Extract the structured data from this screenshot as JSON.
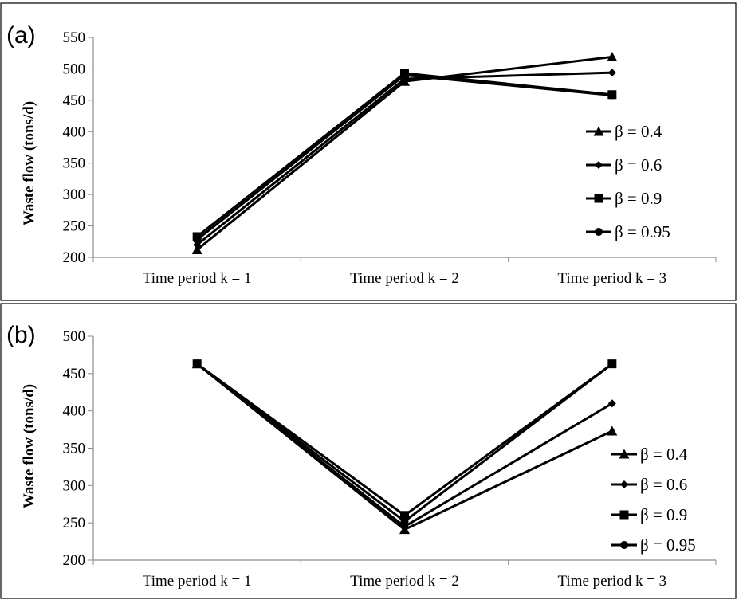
{
  "chart_data": [
    {
      "type": "line",
      "panel_label": "(a)",
      "ylabel": "Waste flow (tons/d)",
      "xlabel": "",
      "ylim": [
        200,
        550
      ],
      "yticks": [
        200,
        250,
        300,
        350,
        400,
        450,
        500,
        550
      ],
      "categories": [
        "Time period k = 1",
        "Time period k = 2",
        "Time period k = 3"
      ],
      "series": [
        {
          "name": "β = 0.4",
          "marker": "triangle",
          "values": [
            212,
            480,
            519
          ]
        },
        {
          "name": "β = 0.6",
          "marker": "diamond",
          "values": [
            220,
            484,
            494
          ]
        },
        {
          "name": "β = 0.9",
          "marker": "square",
          "values": [
            233,
            493,
            459
          ]
        },
        {
          "name": "β = 0.95",
          "marker": "circle",
          "values": [
            228,
            490,
            458
          ]
        }
      ],
      "legend_position": "right",
      "grid": false
    },
    {
      "type": "line",
      "panel_label": "(b)",
      "ylabel": "Waste flow (tons/d)",
      "xlabel": "",
      "ylim": [
        200,
        500
      ],
      "yticks": [
        200,
        250,
        300,
        350,
        400,
        450,
        500
      ],
      "categories": [
        "Time period k = 1",
        "Time period k = 2",
        "Time period k = 3"
      ],
      "series": [
        {
          "name": "β = 0.4",
          "marker": "triangle",
          "values": [
            463,
            241,
            373
          ]
        },
        {
          "name": "β = 0.6",
          "marker": "diamond",
          "values": [
            463,
            245,
            410
          ]
        },
        {
          "name": "β = 0.9",
          "marker": "square",
          "values": [
            463,
            260,
            463
          ]
        },
        {
          "name": "β = 0.95",
          "marker": "circle",
          "values": [
            463,
            252,
            463
          ]
        }
      ],
      "legend_position": "right",
      "grid": false
    }
  ]
}
